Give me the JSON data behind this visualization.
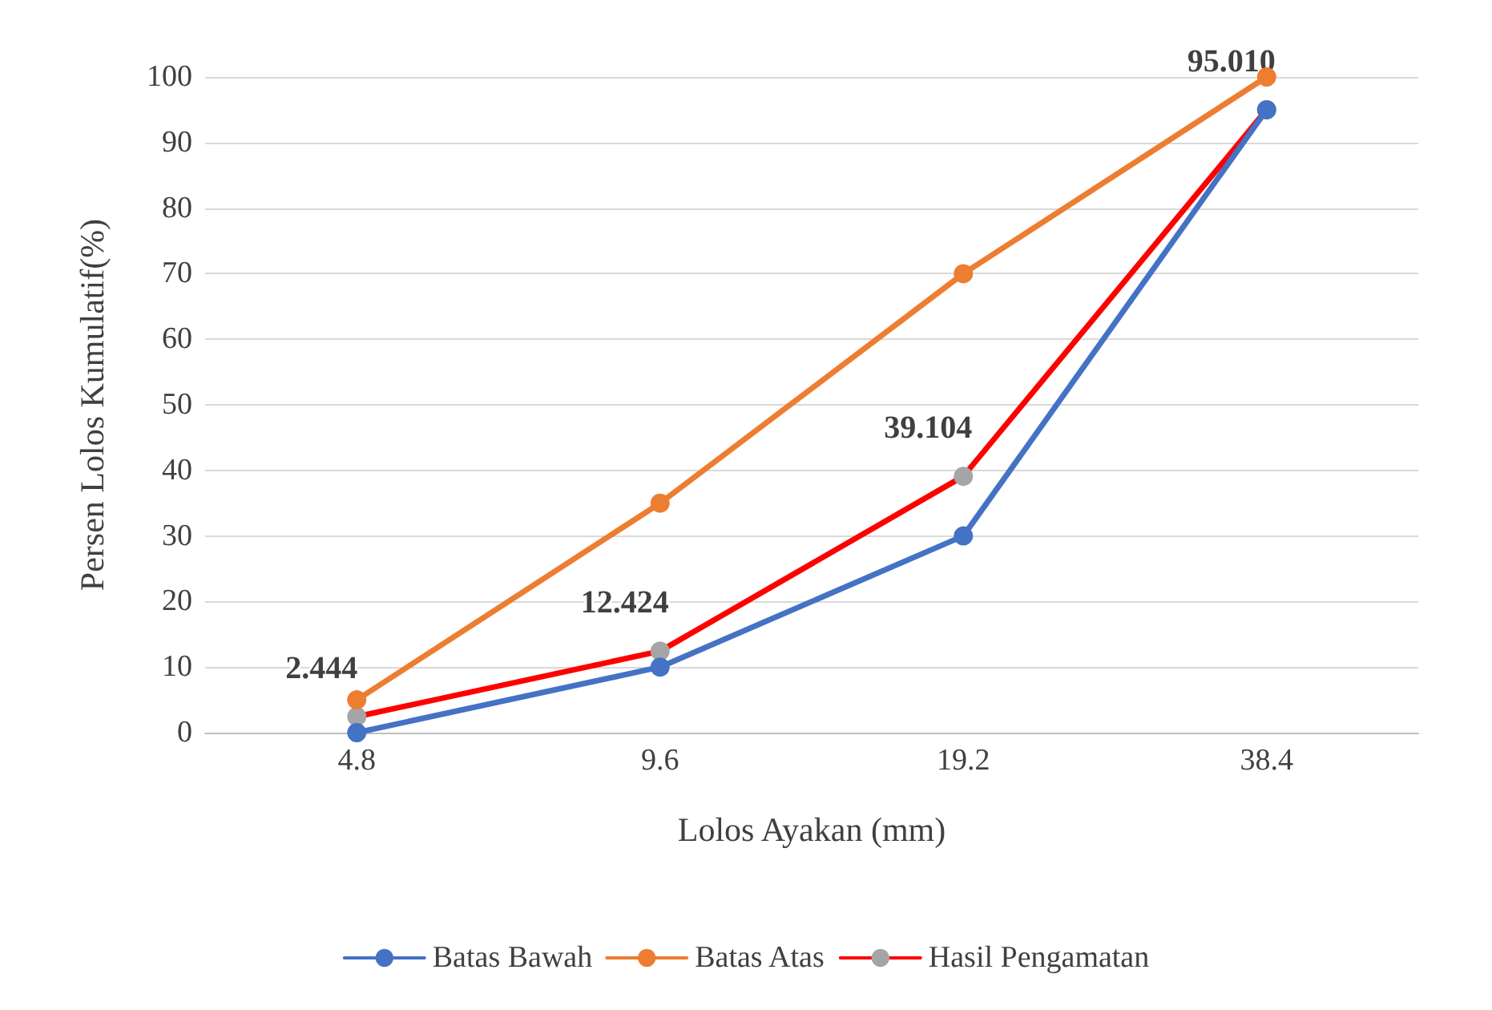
{
  "chart_data": {
    "type": "line",
    "xlabel": "Lolos Ayakan (mm)",
    "ylabel": "Persen Lolos Kumulatif(%)",
    "categories": [
      "4.8",
      "9.6",
      "19.2",
      "38.4"
    ],
    "ylim": [
      0,
      100
    ],
    "yticks": [
      0,
      10,
      20,
      30,
      40,
      50,
      60,
      70,
      80,
      90,
      100
    ],
    "grid": "y",
    "legend": "bottom",
    "marker": "circle",
    "line_style": "solid",
    "series": [
      {
        "name": "Batas Bawah",
        "color": "#4472c4",
        "values": [
          0,
          10,
          30,
          95
        ]
      },
      {
        "name": "Batas Atas",
        "color": "#ed7d31",
        "values": [
          5,
          35,
          70,
          100
        ]
      },
      {
        "name": "Hasil Pengamatan",
        "color": "#ff0000",
        "colors": [
          "#a5a5a5",
          "#a5a5a5",
          "#a5a5a5",
          "#a5a5a5"
        ],
        "values": [
          2.444,
          12.424,
          39.104,
          95.01
        ],
        "value_labels": [
          "2.444",
          "12.424",
          "39.104",
          "95.010"
        ]
      }
    ]
  }
}
